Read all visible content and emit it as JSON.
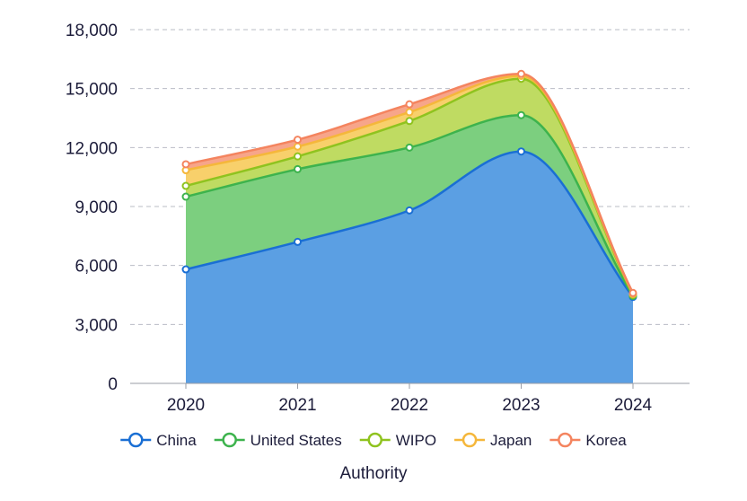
{
  "chart_data": {
    "type": "area",
    "stacked": true,
    "x": [
      "2020",
      "2021",
      "2022",
      "2023",
      "2024"
    ],
    "series": [
      {
        "name": "China",
        "values": [
          5800,
          7200,
          8800,
          11800,
          4400
        ],
        "color": "#1a6fd4",
        "fill": "#5b9fe3"
      },
      {
        "name": "United States",
        "values": [
          3700,
          3700,
          3200,
          1850,
          50
        ],
        "color": "#3db34d",
        "fill": "#7ccf7f"
      },
      {
        "name": "WIPO",
        "values": [
          550,
          650,
          1350,
          1850,
          50
        ],
        "color": "#8fc31f",
        "fill": "#bfdb62"
      },
      {
        "name": "Japan",
        "values": [
          800,
          500,
          450,
          150,
          50
        ],
        "color": "#f5b73b",
        "fill": "#f8d06b"
      },
      {
        "name": "Korea",
        "values": [
          300,
          350,
          400,
          100,
          50
        ],
        "color": "#f4845f",
        "fill": "#f7a58a"
      }
    ],
    "title": "",
    "xlabel": "Authority",
    "ylabel": "",
    "ylim": [
      0,
      18000
    ],
    "yticks": [
      "0",
      "3,000",
      "6,000",
      "9,000",
      "12,000",
      "15,000",
      "18,000"
    ],
    "grid": true,
    "legend_position": "bottom"
  }
}
